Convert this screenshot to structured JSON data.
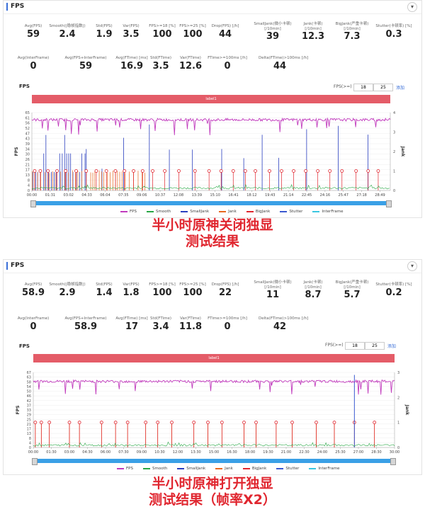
{
  "colors": {
    "fps": "#c13bbd",
    "smooth": "#28a745",
    "smalljank": "#2a3fbf",
    "jank": "#e8671e",
    "bigjank": "#e0262f",
    "stutter": "#3a58d0",
    "interframe": "#3ac7e0",
    "label_bar": "#e45c68",
    "caption": "#e0262f"
  },
  "legend": [
    "FPS",
    "Smooth",
    "SmallJank",
    "Jank",
    "BigJank",
    "Stutter",
    "InterFrame"
  ],
  "panel1": {
    "title": "FPS",
    "row1": [
      {
        "label": "Avg(FPS)",
        "value": "59"
      },
      {
        "label": "Smooth(|稳帧指数|)",
        "value": "2.4"
      },
      {
        "label": "Std(FPS)",
        "value": "1.9"
      },
      {
        "label": "Var(FPS)",
        "value": "3.5"
      },
      {
        "label": "FPS>=18 [%]",
        "value": "100"
      },
      {
        "label": "FPS>=25 [%]",
        "value": "100"
      },
      {
        "label": "Drop(FPS) [/h]",
        "value": "44"
      },
      {
        "label": "SmallJank(微小卡顿)",
        "label2": "[/10min]",
        "value": "39"
      },
      {
        "label": "Jank(卡顿)",
        "label2": "[/10min]",
        "value": "12.3"
      },
      {
        "label": "BigJank(严重卡顿)",
        "label2": "[/10min]",
        "value": "7.3"
      },
      {
        "label": "Stutter(卡顿率) [%]",
        "value": "0.3"
      }
    ],
    "row2": [
      {
        "label": "Avg(InterFrame)",
        "value": "0"
      },
      {
        "label": "Avg(FPS+InterFrame)",
        "value": "59"
      },
      {
        "label": "Avg(FTime) [ms]",
        "value": "16.9"
      },
      {
        "label": "Std(FTime)",
        "value": "3.5"
      },
      {
        "label": "Var(FTime)",
        "value": "12.6"
      },
      {
        "label": "FTime>=100ms [/h]",
        "value": "0"
      },
      {
        "label": "Delta(FTime)>100ms [/h]",
        "value": "44"
      }
    ],
    "chart_title": "FPS",
    "fps_ctl": {
      "label": "FPS(>=)",
      "v1": "18",
      "v2": "25",
      "link": "添加"
    },
    "label1": "label1",
    "chart_data": {
      "type": "line",
      "x_ticks": [
        "00:00",
        "01:31",
        "03:02",
        "04:33",
        "06:04",
        "07:35",
        "09:06",
        "10:37",
        "12:08",
        "13:39",
        "15:10",
        "16:41",
        "18:12",
        "19:43",
        "21:14",
        "22:45",
        "24:16",
        "25:47",
        "27:18",
        "28:49"
      ],
      "y_ticks": [
        "65",
        "61",
        "56",
        "52",
        "47",
        "43",
        "39",
        "34",
        "30",
        "26",
        "21",
        "17",
        "13",
        "8",
        "4",
        "0"
      ],
      "y2_ticks": [
        "4",
        "3",
        "2",
        "1",
        "0"
      ],
      "ylabel": "FPS",
      "y2label": "Jank",
      "ylim": [
        0,
        65
      ],
      "y2lim": [
        0,
        4
      ],
      "fps_mean": 59,
      "bigjank_x": [
        "00:14",
        "00:42",
        "01:20",
        "02:05",
        "02:48",
        "03:40",
        "04:30",
        "05:20",
        "06:10",
        "06:55",
        "07:40",
        "08:25",
        "09:10",
        "10:00",
        "11:00",
        "12:10",
        "13:30",
        "14:40",
        "15:40",
        "16:40",
        "17:40",
        "18:30",
        "19:40",
        "20:40",
        "21:40",
        "22:40",
        "23:40",
        "24:40",
        "25:40",
        "26:50",
        "27:50",
        "28:40"
      ],
      "smalljank_dense_until": "04:30",
      "jank_dense_until": "09:30"
    },
    "caption": [
      "半小时原神关闭独显",
      "测试结果"
    ]
  },
  "panel2": {
    "title": "FPS",
    "row1": [
      {
        "label": "Avg(FPS)",
        "value": "58.9"
      },
      {
        "label": "Smooth(|稳帧指数|)",
        "value": "2.9"
      },
      {
        "label": "Std(FPS)",
        "value": "1.4"
      },
      {
        "label": "Var(FPS)",
        "value": "1.8"
      },
      {
        "label": "FPS>=18 [%]",
        "value": "100"
      },
      {
        "label": "FPS>=25 [%]",
        "value": "100"
      },
      {
        "label": "Drop(FPS) [/h]",
        "value": "22"
      },
      {
        "label": "SmallJank(微小卡顿)",
        "label2": "[/10min]",
        "value": "11"
      },
      {
        "label": "Jank(卡顿)",
        "label2": "[/10min]",
        "value": "8.7"
      },
      {
        "label": "BigJank(严重卡顿)",
        "label2": "[/10min]",
        "value": "5.7"
      },
      {
        "label": "Stutter(卡顿率) [%]",
        "value": "0.2"
      }
    ],
    "row2": [
      {
        "label": "Avg(InterFrame)",
        "value": "0"
      },
      {
        "label": "Avg(FPS+InterFrame)",
        "value": "58.9"
      },
      {
        "label": "Avg(FTime) [ms]",
        "value": "17"
      },
      {
        "label": "Std(FTime)",
        "value": "3.4"
      },
      {
        "label": "Var(FTime)",
        "value": "11.8"
      },
      {
        "label": "FTime>=100ms [/h]",
        "value": "0"
      },
      {
        "label": "Delta(FTime)>100ms [/h]",
        "value": "42"
      }
    ],
    "chart_title": "FPS",
    "fps_ctl": {
      "label": "FPS(>=)",
      "v1": "18",
      "v2": "25",
      "link": "添加"
    },
    "label1": "label1",
    "chart_data": {
      "type": "line",
      "x_ticks": [
        "00:00",
        "01:30",
        "03:00",
        "04:30",
        "06:00",
        "07:30",
        "09:00",
        "10:30",
        "12:00",
        "13:30",
        "15:00",
        "16:30",
        "18:00",
        "19:30",
        "21:00",
        "22:30",
        "24:00",
        "25:30",
        "27:00",
        "28:30",
        "30:00"
      ],
      "y_ticks": [
        "67",
        "63",
        "58",
        "54",
        "50",
        "46",
        "42",
        "37",
        "33",
        "29",
        "25",
        "21",
        "17",
        "13",
        "8",
        "4",
        "0"
      ],
      "y2_ticks": [
        "3",
        "2",
        "1",
        "0"
      ],
      "ylabel": "FPS",
      "y2label": "Jank",
      "ylim": [
        0,
        67
      ],
      "y2lim": [
        0,
        3
      ],
      "fps_mean": 59,
      "bigjank_x": [
        "00:10",
        "00:40",
        "01:20",
        "03:00",
        "03:50",
        "05:40",
        "06:50",
        "07:50",
        "09:20",
        "10:20",
        "11:30",
        "13:20",
        "14:30",
        "15:40",
        "17:30",
        "18:30",
        "20:10",
        "21:30",
        "23:30",
        "25:00",
        "26:40",
        "28:20"
      ],
      "jank_x": [
        "00:10",
        "00:40",
        "01:20",
        "03:00",
        "03:50",
        "05:40",
        "06:50",
        "07:50",
        "09:20",
        "10:20",
        "11:30",
        "13:20",
        "14:30",
        "15:40",
        "17:30",
        "18:30",
        "20:10",
        "21:30",
        "23:30",
        "25:00",
        "26:40",
        "28:20"
      ],
      "stutter_x": "26:40"
    },
    "caption": [
      "半小时原神打开独显",
      "测试结果（帧率X2）"
    ]
  }
}
